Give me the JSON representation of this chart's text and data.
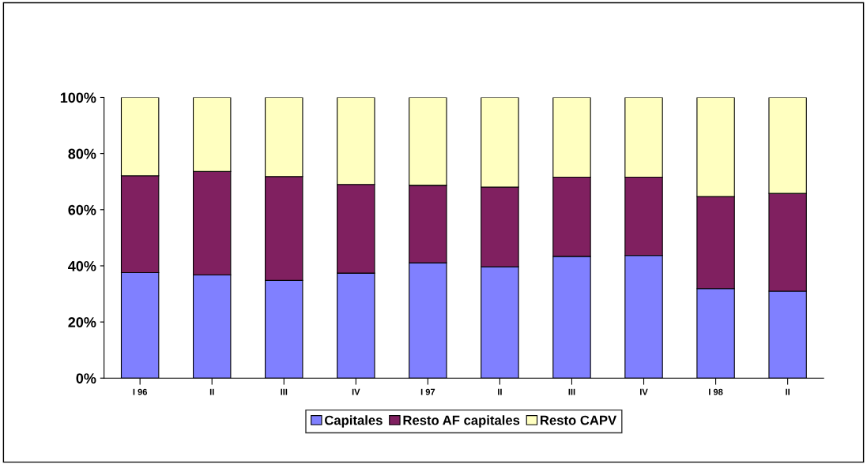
{
  "chart_data": {
    "type": "bar",
    "stacked": true,
    "categories": [
      "I 96",
      "II",
      "III",
      "IV",
      "I 97",
      "II",
      "III",
      "IV",
      "I 98",
      "II"
    ],
    "series": [
      {
        "name": "Capitales",
        "color": "#8080ff",
        "values": [
          37.6,
          36.8,
          34.8,
          37.4,
          41.1,
          39.7,
          43.4,
          43.7,
          31.9,
          31.0
        ]
      },
      {
        "name": "Resto AF capitales",
        "color": "#802060",
        "values": [
          34.5,
          36.8,
          37.0,
          31.6,
          27.6,
          28.4,
          28.2,
          27.9,
          32.8,
          34.8
        ]
      },
      {
        "name": "Resto CAPV",
        "color": "#ffffc0",
        "values": [
          27.9,
          26.4,
          28.2,
          31.0,
          31.3,
          31.9,
          28.4,
          28.4,
          35.3,
          34.2
        ]
      }
    ],
    "ylim": [
      0,
      100
    ],
    "yticks": [
      {
        "value": 0,
        "label": "0%"
      },
      {
        "value": 20,
        "label": "20%"
      },
      {
        "value": 40,
        "label": "40%"
      },
      {
        "value": 60,
        "label": "60%"
      },
      {
        "value": 80,
        "label": "80%"
      },
      {
        "value": 100,
        "label": "100%"
      }
    ],
    "grid": false,
    "legend": "bottom"
  }
}
